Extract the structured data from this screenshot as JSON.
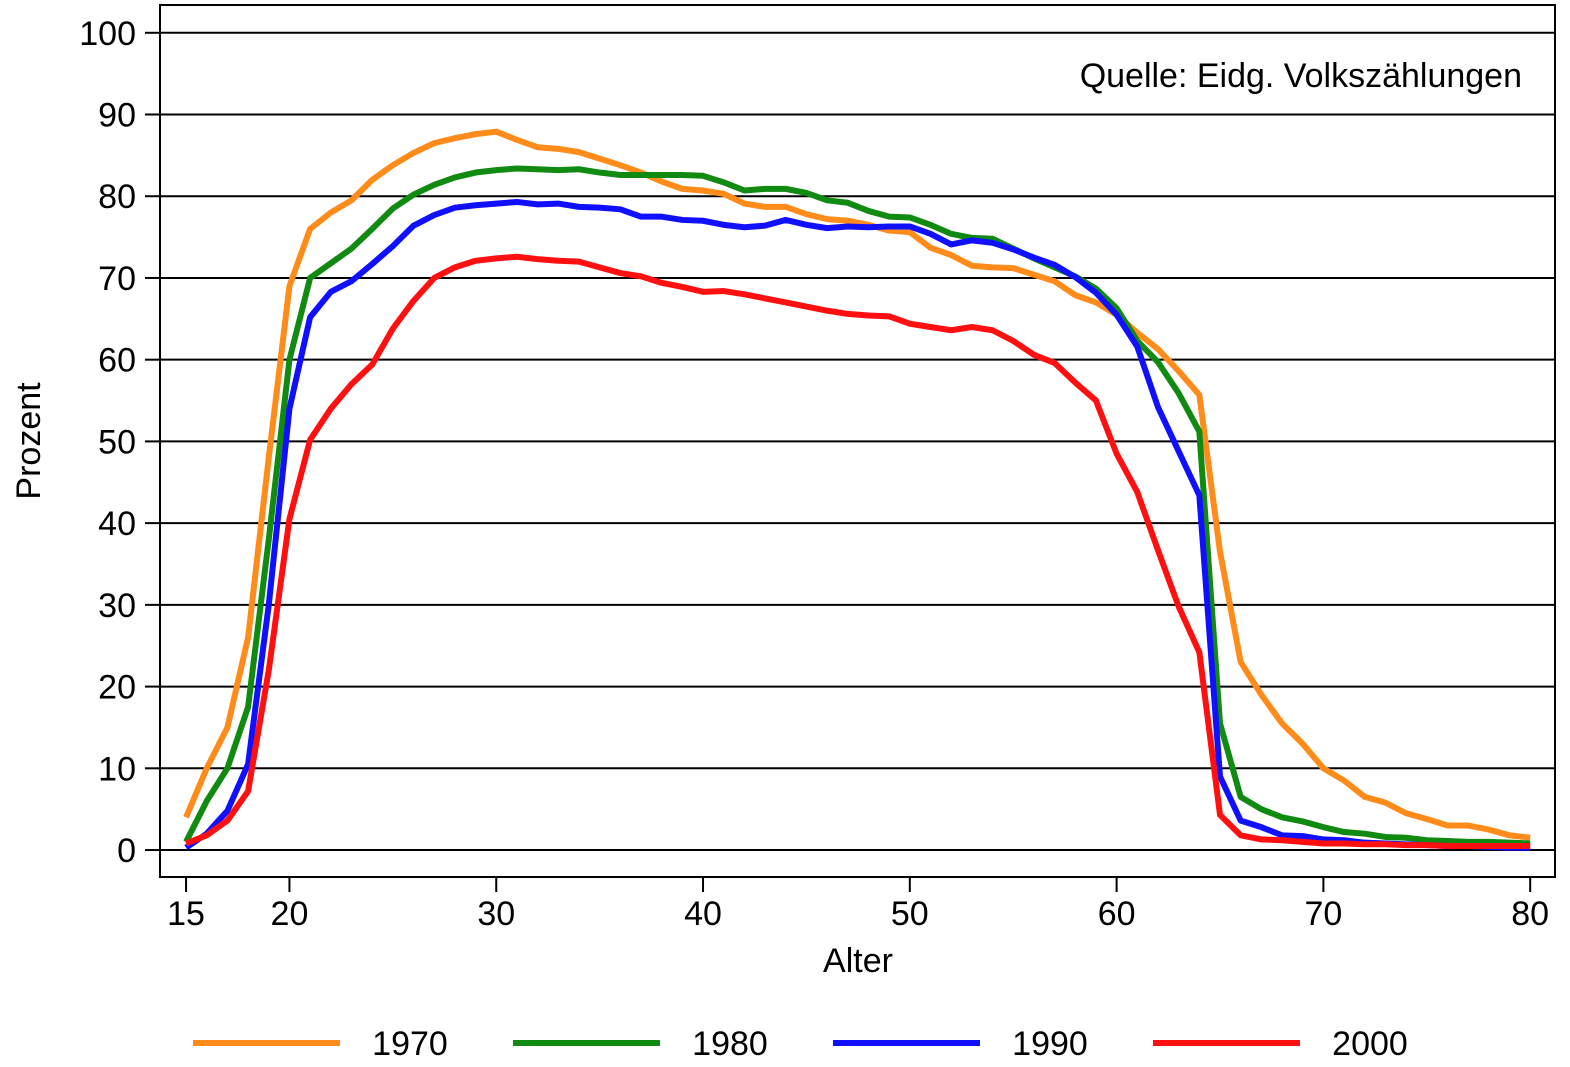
{
  "chart_data": {
    "type": "line",
    "ylabel": "Prozent",
    "xlabel": "Alter",
    "annotation": "Quelle: Eidg. Volkszählungen",
    "x": [
      15,
      16,
      17,
      18,
      19,
      20,
      21,
      22,
      23,
      24,
      25,
      26,
      27,
      28,
      29,
      30,
      31,
      32,
      33,
      34,
      35,
      36,
      37,
      38,
      39,
      40,
      41,
      42,
      43,
      44,
      45,
      46,
      47,
      48,
      49,
      50,
      51,
      52,
      53,
      54,
      55,
      56,
      57,
      58,
      59,
      60,
      61,
      62,
      63,
      64,
      65,
      66,
      67,
      68,
      69,
      70,
      71,
      72,
      73,
      74,
      75,
      76,
      77,
      78,
      79,
      80
    ],
    "series": [
      {
        "name": "1970",
        "color": "#ff8c1a",
        "values": [
          4,
          10,
          15,
          26,
          48,
          69,
          76,
          78,
          79.5,
          82,
          83.8,
          85.3,
          86.5,
          87.1,
          87.6,
          87.9,
          86.9,
          86,
          85.8,
          85.4,
          84.6,
          83.8,
          82.9,
          81.8,
          80.9,
          80.7,
          80.3,
          79.1,
          78.7,
          78.7,
          77.8,
          77.2,
          77,
          76.5,
          75.8,
          75.6,
          73.7,
          72.8,
          71.5,
          71.3,
          71.2,
          70.4,
          69.6,
          67.9,
          67,
          65.5,
          63.3,
          61.3,
          58.6,
          55.7,
          36.5,
          23,
          19,
          15.5,
          13,
          10,
          8.5,
          6.5,
          5.8,
          4.5,
          3.8,
          3,
          3,
          2.5,
          1.8,
          1.5
        ]
      },
      {
        "name": "1980",
        "color": "#108a10",
        "values": [
          1,
          6,
          10,
          17.5,
          38,
          60,
          70,
          71.8,
          73.6,
          76,
          78.5,
          80.2,
          81.4,
          82.3,
          82.9,
          83.2,
          83.4,
          83.3,
          83.2,
          83.3,
          82.9,
          82.6,
          82.6,
          82.6,
          82.6,
          82.5,
          81.7,
          80.7,
          80.9,
          80.9,
          80.4,
          79.5,
          79.2,
          78.2,
          77.5,
          77.4,
          76.5,
          75.4,
          74.9,
          74.8,
          73.6,
          72.4,
          71.3,
          70.2,
          68.7,
          66.3,
          62.3,
          59.7,
          55.9,
          51.2,
          15.5,
          6.5,
          5,
          4,
          3.5,
          2.8,
          2.2,
          2,
          1.6,
          1.5,
          1.2,
          1.1,
          1,
          1,
          0.9,
          0.8
        ]
      },
      {
        "name": "1990",
        "color": "#1010ff",
        "values": [
          0.3,
          2,
          4.8,
          10.5,
          30,
          54,
          65.2,
          68.3,
          69.6,
          71.7,
          73.9,
          76.4,
          77.7,
          78.6,
          78.9,
          79.1,
          79.3,
          79,
          79.1,
          78.7,
          78.6,
          78.4,
          77.5,
          77.5,
          77.1,
          77,
          76.5,
          76.2,
          76.4,
          77.1,
          76.5,
          76.1,
          76.3,
          76.2,
          76.3,
          76.3,
          75.4,
          74.1,
          74.6,
          74.3,
          73.5,
          72.5,
          71.6,
          70.1,
          68.2,
          65.5,
          61.6,
          54.2,
          48.8,
          43.4,
          9,
          3.6,
          2.8,
          1.8,
          1.7,
          1.3,
          1.2,
          0.9,
          0.8,
          0.7,
          0.6,
          0.5,
          0.5,
          0.4,
          0.3,
          0.3
        ]
      },
      {
        "name": "2000",
        "color": "#ff1010",
        "values": [
          0.8,
          1.8,
          3.6,
          7.2,
          22,
          40.5,
          50.2,
          54,
          57,
          59.4,
          63.8,
          67.2,
          70,
          71.3,
          72.1,
          72.4,
          72.6,
          72.3,
          72.1,
          72,
          71.3,
          70.6,
          70.2,
          69.4,
          68.9,
          68.3,
          68.4,
          68,
          67.5,
          67,
          66.5,
          66,
          65.6,
          65.4,
          65.3,
          64.4,
          64,
          63.6,
          64,
          63.6,
          62.3,
          60.6,
          59.6,
          57.2,
          55,
          48.5,
          43.8,
          36.7,
          29.8,
          24.2,
          4.3,
          1.8,
          1.3,
          1.2,
          1,
          0.8,
          0.8,
          0.7,
          0.7,
          0.6,
          0.6,
          0.5,
          0.5,
          0.5,
          0.5,
          0.5
        ]
      }
    ],
    "xlim": [
      13.74,
      81.2
    ],
    "xticks": [
      15,
      20,
      30,
      40,
      50,
      60,
      70,
      80
    ],
    "ylim": [
      -3.3,
      103.4
    ],
    "yticks": [
      0,
      10,
      20,
      30,
      40,
      50,
      60,
      70,
      80,
      90,
      100
    ],
    "grid": true,
    "legend": "bottom"
  }
}
